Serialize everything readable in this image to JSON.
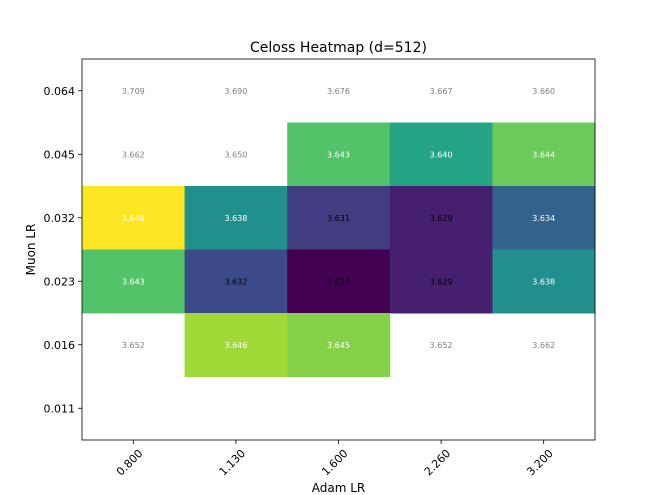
{
  "chart_data": {
    "type": "heatmap",
    "title": "Celoss Heatmap (d=512)",
    "xlabel": "Adam LR",
    "ylabel": "Muon LR",
    "x_categories": [
      "0.800",
      "1.130",
      "1.600",
      "2.260",
      "3.200"
    ],
    "y_categories": [
      "0.064",
      "0.045",
      "0.032",
      "0.023",
      "0.016",
      "0.011"
    ],
    "colormap": "viridis",
    "color_range": [
      3.627,
      3.649
    ],
    "grid": false,
    "cells": [
      {
        "y": "0.064",
        "x": "0.800",
        "value": 3.709,
        "colored": false
      },
      {
        "y": "0.064",
        "x": "1.130",
        "value": 3.69,
        "colored": false
      },
      {
        "y": "0.064",
        "x": "1.600",
        "value": 3.676,
        "colored": false
      },
      {
        "y": "0.064",
        "x": "2.260",
        "value": 3.667,
        "colored": false
      },
      {
        "y": "0.064",
        "x": "3.200",
        "value": 3.66,
        "colored": false
      },
      {
        "y": "0.045",
        "x": "0.800",
        "value": 3.662,
        "colored": false
      },
      {
        "y": "0.045",
        "x": "1.130",
        "value": 3.65,
        "colored": false
      },
      {
        "y": "0.045",
        "x": "1.600",
        "value": 3.643,
        "colored": true
      },
      {
        "y": "0.045",
        "x": "2.260",
        "value": 3.64,
        "colored": true
      },
      {
        "y": "0.045",
        "x": "3.200",
        "value": 3.644,
        "colored": true
      },
      {
        "y": "0.032",
        "x": "0.800",
        "value": 3.649,
        "colored": true
      },
      {
        "y": "0.032",
        "x": "1.130",
        "value": 3.638,
        "colored": true
      },
      {
        "y": "0.032",
        "x": "1.600",
        "value": 3.631,
        "colored": true
      },
      {
        "y": "0.032",
        "x": "2.260",
        "value": 3.629,
        "colored": true
      },
      {
        "y": "0.032",
        "x": "3.200",
        "value": 3.634,
        "colored": true
      },
      {
        "y": "0.023",
        "x": "0.800",
        "value": 3.643,
        "colored": true
      },
      {
        "y": "0.023",
        "x": "1.130",
        "value": 3.632,
        "colored": true
      },
      {
        "y": "0.023",
        "x": "1.600",
        "value": 3.627,
        "colored": true
      },
      {
        "y": "0.023",
        "x": "2.260",
        "value": 3.629,
        "colored": true
      },
      {
        "y": "0.023",
        "x": "3.200",
        "value": 3.638,
        "colored": true
      },
      {
        "y": "0.016",
        "x": "0.800",
        "value": 3.652,
        "colored": false
      },
      {
        "y": "0.016",
        "x": "1.130",
        "value": 3.646,
        "colored": true
      },
      {
        "y": "0.016",
        "x": "1.600",
        "value": 3.645,
        "colored": true
      },
      {
        "y": "0.016",
        "x": "2.260",
        "value": 3.652,
        "colored": false
      },
      {
        "y": "0.016",
        "x": "3.200",
        "value": 3.662,
        "colored": false
      }
    ],
    "colors": {
      "uncolored_text": "#808080",
      "light_text": "#ffffff",
      "dark_text": "#000000"
    }
  }
}
